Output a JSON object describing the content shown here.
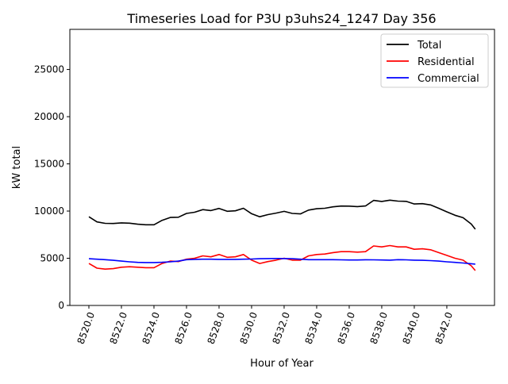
{
  "chart_data": {
    "type": "line",
    "title": "Timeseries Load for P3U p3uhs24_1247  Day 356",
    "xlabel": "Hour of Year",
    "ylabel": "kW total",
    "xlim": [
      8518.83,
      8544.93
    ],
    "ylim": [
      0,
      29250
    ],
    "xticks": [
      8520,
      8522,
      8524,
      8526,
      8528,
      8530,
      8532,
      8534,
      8536,
      8538,
      8540,
      8542
    ],
    "xtick_labels": [
      "8520.0",
      "8522.0",
      "8524.0",
      "8526.0",
      "8528.0",
      "8530.0",
      "8532.0",
      "8534.0",
      "8536.0",
      "8538.0",
      "8540.0",
      "8542.0"
    ],
    "yticks": [
      0,
      5000,
      10000,
      15000,
      20000,
      25000
    ],
    "ytick_labels": [
      "0",
      "5000",
      "10000",
      "15000",
      "20000",
      "25000"
    ],
    "legend_position": "top-right",
    "grid": false,
    "x": [
      8520,
      8520.5,
      8521,
      8521.5,
      8522,
      8522.5,
      8523,
      8523.5,
      8524,
      8524.5,
      8525,
      8525.5,
      8526,
      8526.5,
      8527,
      8527.5,
      8528,
      8528.5,
      8529,
      8529.5,
      8530,
      8530.5,
      8531,
      8531.5,
      8532,
      8532.5,
      8533,
      8533.5,
      8534,
      8534.5,
      8535,
      8535.5,
      8536,
      8536.5,
      8537,
      8537.5,
      8538,
      8538.5,
      8539,
      8539.5,
      8540,
      8540.5,
      8541,
      8541.5,
      8542,
      8542.5,
      8543,
      8543.5,
      8543.75
    ],
    "series": [
      {
        "name": "Total",
        "color": "#000000",
        "values": [
          9400,
          8850,
          8700,
          8680,
          8750,
          8720,
          8610,
          8550,
          8550,
          9020,
          9320,
          9350,
          9750,
          9880,
          10150,
          10050,
          10280,
          9980,
          10030,
          10300,
          9720,
          9400,
          9620,
          9780,
          9970,
          9750,
          9700,
          10100,
          10250,
          10300,
          10450,
          10530,
          10520,
          10470,
          10540,
          11130,
          11020,
          11150,
          11050,
          11030,
          10750,
          10780,
          10650,
          10300,
          9920,
          9560,
          9300,
          8620,
          8080
        ]
      },
      {
        "name": "Residential",
        "color": "#ff0000",
        "values": [
          4450,
          3950,
          3850,
          3900,
          4050,
          4100,
          4050,
          4000,
          4000,
          4450,
          4700,
          4650,
          4900,
          5000,
          5250,
          5150,
          5400,
          5100,
          5150,
          5400,
          4800,
          4450,
          4650,
          4800,
          5000,
          4800,
          4800,
          5250,
          5400,
          5450,
          5600,
          5700,
          5700,
          5650,
          5700,
          6300,
          6200,
          6350,
          6200,
          6200,
          5950,
          6000,
          5900,
          5600,
          5300,
          5000,
          4800,
          4200,
          3700
        ]
      },
      {
        "name": "Commercial",
        "color": "#0000ff",
        "values": [
          4950,
          4900,
          4850,
          4780,
          4700,
          4620,
          4560,
          4550,
          4550,
          4570,
          4620,
          4700,
          4850,
          4880,
          4900,
          4900,
          4880,
          4880,
          4880,
          4900,
          4920,
          4950,
          4970,
          4980,
          4970,
          4950,
          4900,
          4850,
          4850,
          4850,
          4850,
          4830,
          4820,
          4820,
          4840,
          4830,
          4820,
          4800,
          4850,
          4830,
          4800,
          4780,
          4750,
          4700,
          4620,
          4560,
          4500,
          4420,
          4380
        ]
      }
    ]
  }
}
